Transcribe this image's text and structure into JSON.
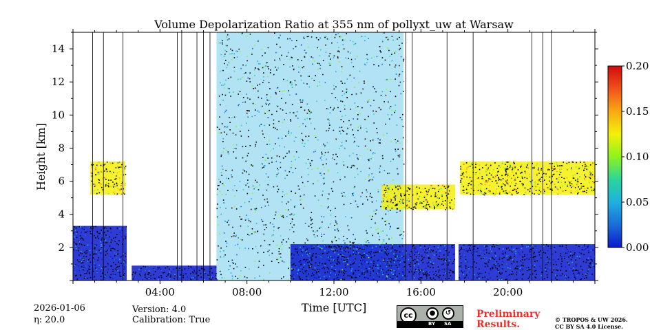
{
  "chart_data": {
    "type": "heatmap",
    "title": "Volume Depolarization Ratio at 355 nm of pollyxt_uw at Warsaw",
    "xlabel": "Time [UTC]",
    "ylabel": "Height [km]",
    "xlim": [
      0,
      24
    ],
    "ylim": [
      0,
      15
    ],
    "x_ticks": [
      {
        "value": 4,
        "label": "04:00"
      },
      {
        "value": 8,
        "label": "08:00"
      },
      {
        "value": 12,
        "label": "12:00"
      },
      {
        "value": 16,
        "label": "16:00"
      },
      {
        "value": 20,
        "label": "20:00"
      }
    ],
    "y_ticks": [
      {
        "value": 2,
        "label": "2"
      },
      {
        "value": 4,
        "label": "4"
      },
      {
        "value": 6,
        "label": "6"
      },
      {
        "value": 8,
        "label": "8"
      },
      {
        "value": 10,
        "label": "10"
      },
      {
        "value": 12,
        "label": "12"
      },
      {
        "value": 14,
        "label": "14"
      }
    ],
    "colorbar": {
      "min": 0.0,
      "max": 0.2,
      "ticks": [
        {
          "value": 0.0,
          "label": "0.00"
        },
        {
          "value": 0.05,
          "label": "0.05"
        },
        {
          "value": 0.1,
          "label": "0.10"
        },
        {
          "value": 0.15,
          "label": "0.15"
        },
        {
          "value": 0.2,
          "label": "0.20"
        }
      ],
      "colormap": [
        "#0a1acb",
        "#1a6dd8",
        "#1fb0e0",
        "#2cd59a",
        "#8ef21c",
        "#f4f00a",
        "#f7a912",
        "#f2521c",
        "#d00b0b"
      ]
    },
    "regions": [
      {
        "t0": 0.0,
        "t1": 2.5,
        "h0": 0.0,
        "h1": 3.3,
        "value": 0.01,
        "note": "boundary layer"
      },
      {
        "t0": 0.8,
        "t1": 2.4,
        "h0": 5.2,
        "h1": 7.2,
        "value": 0.13,
        "note": "aerosol layer"
      },
      {
        "t0": 2.7,
        "t1": 6.6,
        "h0": 0.0,
        "h1": 0.9,
        "value": 0.01,
        "note": "shallow boundary layer"
      },
      {
        "t0": 6.6,
        "t1": 15.2,
        "h0": 0.0,
        "h1": 15.0,
        "value": 0.06,
        "note": "noisy/cloudy column"
      },
      {
        "t0": 10.0,
        "t1": 24.0,
        "h0": 0.0,
        "h1": 2.2,
        "value": 0.01,
        "note": "boundary layer"
      },
      {
        "t0": 14.2,
        "t1": 17.6,
        "h0": 4.3,
        "h1": 5.8,
        "value": 0.12,
        "note": "aerosol layer"
      },
      {
        "t0": 17.8,
        "t1": 24.0,
        "h0": 5.2,
        "h1": 7.2,
        "value": 0.13,
        "note": "aerosol layer"
      }
    ],
    "gaps": [
      2.55,
      17.65
    ],
    "profile_lines": [
      0.9,
      1.4,
      2.3,
      4.8,
      5.0,
      5.7,
      6.0,
      6.3,
      15.3,
      15.6,
      17.2,
      18.4,
      21.1,
      21.6,
      22.0
    ]
  },
  "footer": {
    "date": "2026-01-06",
    "eta": "η: 20.0",
    "version": "Version: 4.0",
    "calibration": "Calibration: True",
    "preliminary_line1": "Preliminary",
    "preliminary_line2": "Results.",
    "copyright_line1": "© TROPOS & UW 2026.",
    "copyright_line2": "CC BY SA 4.0 License.",
    "license_badge": {
      "cc": "cc",
      "by": "BY",
      "sa": "SA"
    }
  }
}
